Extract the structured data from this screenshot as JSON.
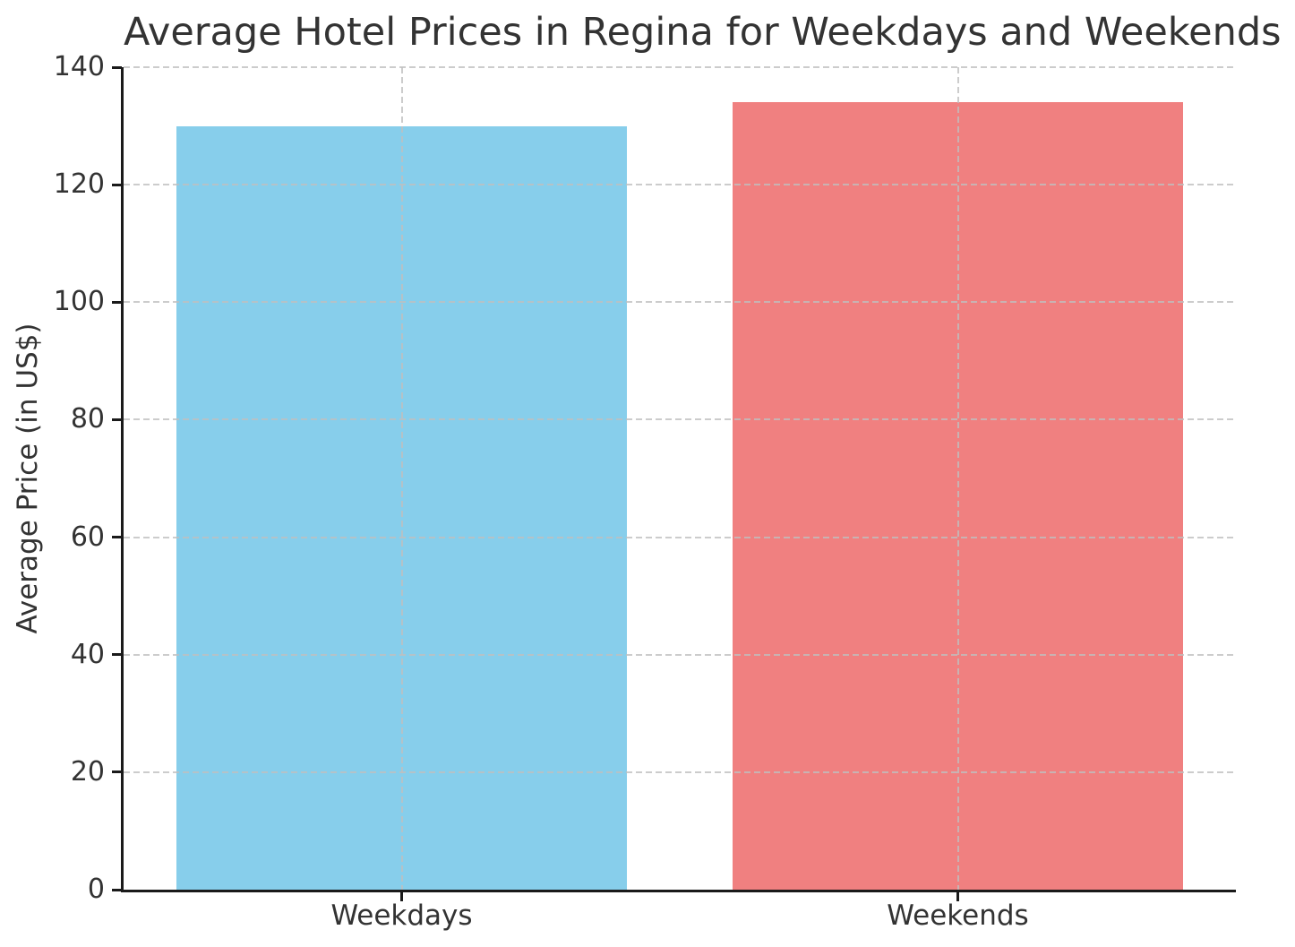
{
  "chart_data": {
    "type": "bar",
    "title": "Average Hotel Prices in Regina for Weekdays and Weekends",
    "ylabel": "Average Price (in US$)",
    "xlabel": "",
    "categories": [
      "Weekdays",
      "Weekends"
    ],
    "values": [
      130,
      134
    ],
    "bar_colors": [
      "#87CEEB",
      "#F08080"
    ],
    "ylim": [
      0,
      140
    ],
    "yticks": [
      0,
      20,
      40,
      60,
      80,
      100,
      120,
      140
    ],
    "grid": "dashed",
    "grid_on": true,
    "grid_above_bars": true,
    "grid_color": "#bfbfbf",
    "axis_color": "#1a1a1a",
    "text_color": "#333333",
    "background_color": "#ffffff",
    "legend": "none",
    "bar_width_fraction": 0.81
  }
}
